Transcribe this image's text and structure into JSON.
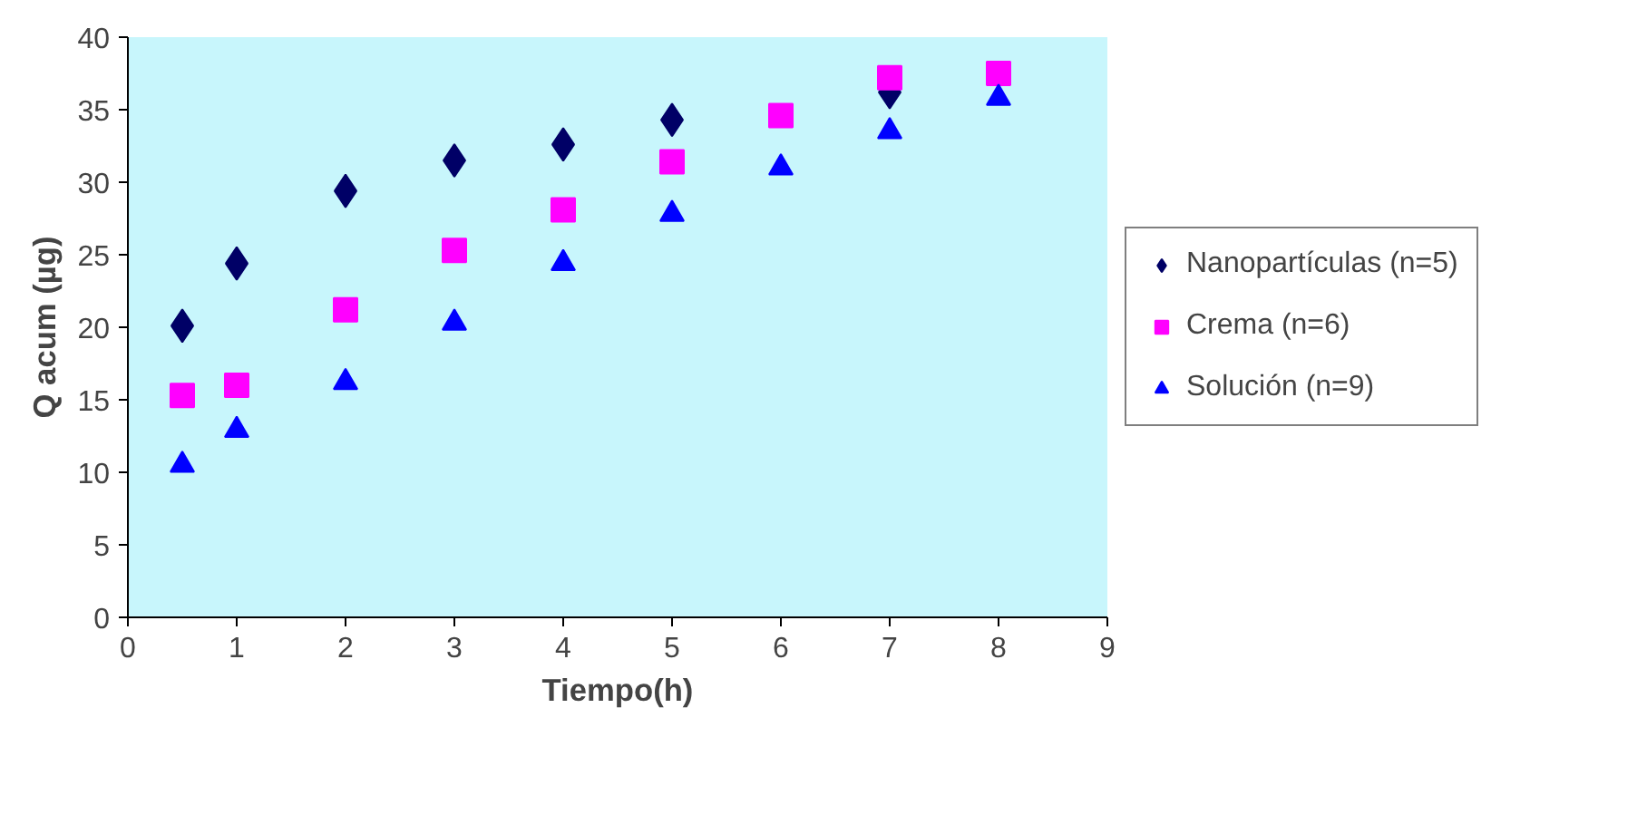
{
  "chart_data": {
    "type": "scatter",
    "xlabel": "Tiempo(h)",
    "ylabel": "Q acum (µg)",
    "x": [
      0.5,
      1,
      2,
      3,
      4,
      5,
      6,
      7,
      8
    ],
    "series": [
      {
        "name": "Nanopartículas (n=5)",
        "color": "#000066",
        "marker": "diamond",
        "values": [
          20.1,
          24.4,
          29.4,
          31.5,
          32.6,
          34.3,
          null,
          36.2,
          null
        ]
      },
      {
        "name": "Crema (n=6)",
        "color": "#ff00ff",
        "marker": "square",
        "values": [
          15.3,
          16.0,
          21.2,
          25.3,
          28.1,
          31.4,
          34.6,
          37.2,
          37.5
        ]
      },
      {
        "name": "Solución (n=9)",
        "color": "#0000ff",
        "marker": "triangle",
        "values": [
          10.5,
          12.9,
          16.2,
          20.3,
          24.4,
          27.8,
          31.0,
          33.5,
          35.8
        ]
      }
    ],
    "xlim": [
      0,
      9
    ],
    "ylim": [
      0,
      40
    ],
    "xticks": [
      0,
      1,
      2,
      3,
      4,
      5,
      6,
      7,
      8,
      9
    ],
    "yticks": [
      0,
      5,
      10,
      15,
      20,
      25,
      30,
      35,
      40
    ],
    "grid": false,
    "legend": "right"
  }
}
